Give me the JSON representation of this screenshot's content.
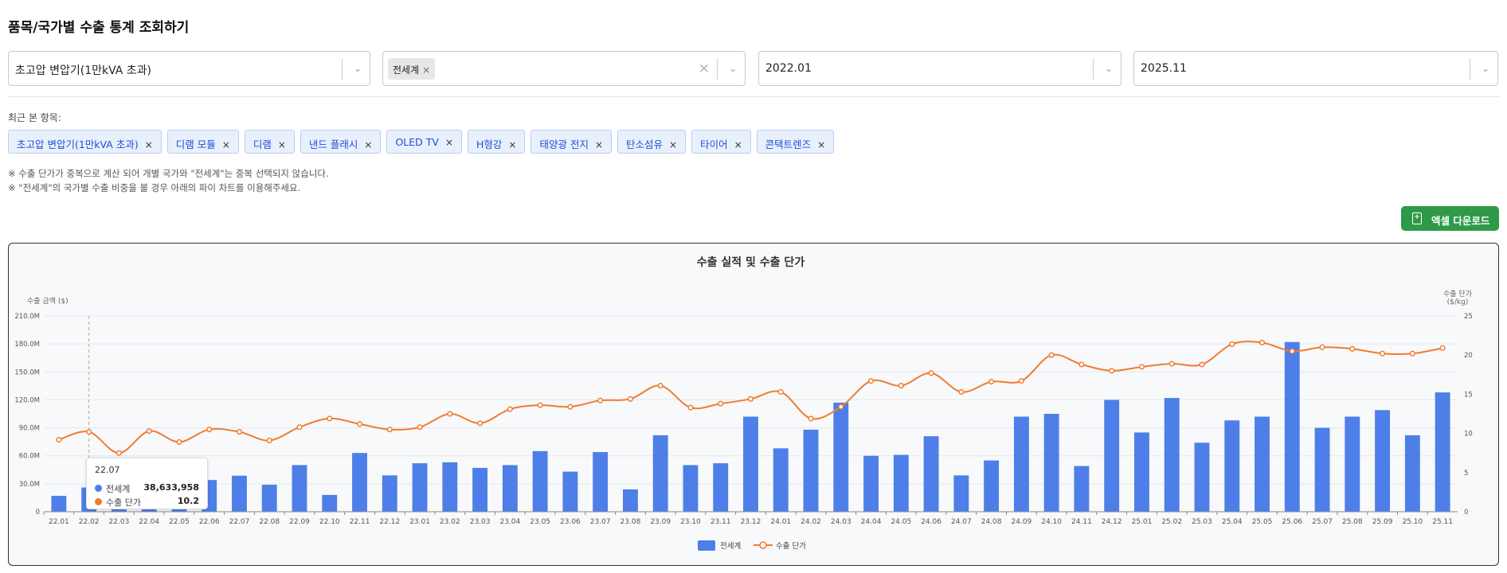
{
  "page_title": "품목/국가별 수출 통계 조회하기",
  "filters": {
    "product": "초고압 변압기(1만kVA 초과)",
    "country_chip": "전세계",
    "start": "2022.01",
    "end": "2025.11"
  },
  "recent_label": "최근 본 항목:",
  "recent_items": [
    "초고압 변압기(1만kVA 초과)",
    "디램 모듈",
    "디램",
    "낸드 플래시",
    "OLED TV",
    "H형강",
    "태양광 전지",
    "탄소섬유",
    "타이어",
    "콘택트렌즈"
  ],
  "notes": [
    "※ 수출 단가가 중복으로 계산 되어 개별 국가와 \"전세계\"는 중복 선택되지 않습니다.",
    "※ \"전세계\"의 국가별 수출 비중을 볼 경우 아래의 파이 차트를 이용해주세요."
  ],
  "excel_button": "엑셀 다운로드",
  "icons": {
    "select_chevron": "chevron-down-icon",
    "clear": "close-icon",
    "excel": "file-download-icon"
  },
  "colors": {
    "bar": "#4e7fe8",
    "line": "#f07c2e",
    "excel": "#2e9a47",
    "tag_text": "#1d4ed8"
  },
  "tooltip": {
    "title": "22.07",
    "rows": [
      {
        "name": "전세계",
        "value": "38,633,958"
      },
      {
        "name": "수출 단가",
        "value": "10.2"
      }
    ]
  },
  "chart_data": {
    "type": "bar",
    "title": "수출 실적 및 수출 단가",
    "ylabel": "수출 금액 ($)",
    "y2label": "수출 단가 ($/kg)",
    "ylim": [
      0,
      210000000
    ],
    "yticks": [
      "0",
      "30.0M",
      "60.0M",
      "90.0M",
      "120.0M",
      "150.0M",
      "180.0M",
      "210.0M"
    ],
    "y2lim": [
      0,
      25
    ],
    "y2ticks": [
      "0",
      "5",
      "10",
      "15",
      "20",
      "25"
    ],
    "grid": true,
    "legend_position": "bottom",
    "categories": [
      "22.01",
      "22.02",
      "22.03",
      "22.04",
      "22.05",
      "22.06",
      "22.07",
      "22.08",
      "22.09",
      "22.10",
      "22.11",
      "22.12",
      "23.01",
      "23.02",
      "23.03",
      "23.04",
      "23.05",
      "23.06",
      "23.07",
      "23.08",
      "23.09",
      "23.10",
      "23.11",
      "23.12",
      "24.01",
      "24.02",
      "24.03",
      "24.04",
      "24.05",
      "24.06",
      "24.07",
      "24.08",
      "24.09",
      "24.10",
      "24.11",
      "24.12",
      "25.01",
      "25.02",
      "25.03",
      "25.04",
      "25.05",
      "25.06",
      "25.07",
      "25.08",
      "25.09",
      "25.10",
      "25.11"
    ],
    "series": [
      {
        "name": "전세계",
        "type": "bar",
        "axis": "left",
        "values": [
          17000000,
          26000000,
          12000000,
          20000000,
          18000000,
          34000000,
          38633958,
          29000000,
          50000000,
          18000000,
          63000000,
          39000000,
          52000000,
          53000000,
          47000000,
          50000000,
          65000000,
          43000000,
          64000000,
          24000000,
          82000000,
          50000000,
          52000000,
          102000000,
          68000000,
          88000000,
          117000000,
          60000000,
          61000000,
          81000000,
          39000000,
          55000000,
          102000000,
          105000000,
          49000000,
          120000000,
          85000000,
          122000000,
          74000000,
          98000000,
          102000000,
          182000000,
          90000000,
          102000000,
          109000000,
          82000000,
          128000000
        ]
      },
      {
        "name": "수출 단가",
        "type": "line",
        "axis": "right",
        "values": [
          9.2,
          10.2,
          7.5,
          10.3,
          8.9,
          10.5,
          10.2,
          9.1,
          10.8,
          11.9,
          11.2,
          10.5,
          10.8,
          12.5,
          11.3,
          13.1,
          13.6,
          13.4,
          14.2,
          14.4,
          16.1,
          13.3,
          13.8,
          14.4,
          15.3,
          11.9,
          13.4,
          16.7,
          16.1,
          17.7,
          15.3,
          16.6,
          16.7,
          20.0,
          18.8,
          18.0,
          18.5,
          18.9,
          18.8,
          21.4,
          21.6,
          20.5,
          21.0,
          20.8,
          20.2,
          20.2,
          20.9
        ]
      }
    ]
  }
}
